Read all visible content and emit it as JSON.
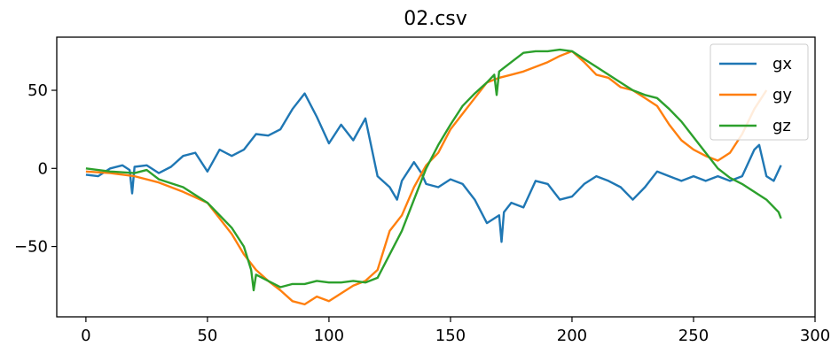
{
  "chart_data": {
    "type": "line",
    "title": "02.csv",
    "xlabel": "",
    "ylabel": "",
    "xlim": [
      -12,
      300
    ],
    "ylim": [
      -95,
      84
    ],
    "xticks": [
      0,
      50,
      100,
      150,
      200,
      250,
      300
    ],
    "yticks": [
      -50,
      0,
      50
    ],
    "grid": false,
    "legend": "top-right",
    "colors": {
      "gx": "#1f77b4",
      "gy": "#ff7f0e",
      "gz": "#2ca02c"
    },
    "series": [
      {
        "name": "gx",
        "x": [
          0,
          5,
          10,
          15,
          18,
          19,
          20,
          25,
          30,
          35,
          40,
          45,
          50,
          55,
          60,
          65,
          70,
          75,
          80,
          85,
          90,
          95,
          100,
          105,
          110,
          115,
          120,
          125,
          128,
          130,
          135,
          138,
          140,
          145,
          150,
          155,
          160,
          165,
          170,
          171,
          172,
          175,
          180,
          185,
          190,
          195,
          200,
          205,
          210,
          215,
          220,
          225,
          230,
          235,
          240,
          245,
          250,
          255,
          260,
          265,
          270,
          275,
          277,
          280,
          283,
          286
        ],
        "y": [
          -4,
          -5,
          0,
          2,
          -1,
          -16,
          1,
          2,
          -3,
          1,
          8,
          10,
          -2,
          12,
          8,
          12,
          22,
          21,
          25,
          38,
          48,
          33,
          16,
          28,
          18,
          32,
          -5,
          -12,
          -20,
          -8,
          4,
          -3,
          -10,
          -12,
          -7,
          -10,
          -20,
          -35,
          -30,
          -47,
          -28,
          -22,
          -25,
          -8,
          -10,
          -20,
          -18,
          -10,
          -5,
          -8,
          -12,
          -20,
          -12,
          -2,
          -5,
          -8,
          -5,
          -8,
          -5,
          -8,
          -5,
          12,
          15,
          -5,
          -8,
          2
        ]
      },
      {
        "name": "gy",
        "x": [
          0,
          10,
          20,
          30,
          40,
          50,
          55,
          60,
          65,
          70,
          75,
          80,
          85,
          90,
          95,
          100,
          105,
          110,
          115,
          120,
          125,
          130,
          135,
          140,
          145,
          150,
          155,
          160,
          165,
          170,
          175,
          180,
          185,
          190,
          195,
          200,
          205,
          210,
          215,
          220,
          225,
          230,
          235,
          240,
          245,
          250,
          255,
          260,
          265,
          270,
          275,
          280
        ],
        "y": [
          -2,
          -3,
          -5,
          -9,
          -15,
          -22,
          -32,
          -42,
          -55,
          -65,
          -72,
          -78,
          -85,
          -87,
          -82,
          -85,
          -80,
          -75,
          -72,
          -65,
          -40,
          -30,
          -12,
          2,
          10,
          25,
          35,
          45,
          55,
          58,
          60,
          62,
          65,
          68,
          72,
          75,
          68,
          60,
          58,
          52,
          50,
          45,
          40,
          28,
          18,
          12,
          8,
          5,
          10,
          22,
          38,
          50
        ]
      },
      {
        "name": "gz",
        "x": [
          0,
          10,
          20,
          25,
          30,
          40,
          50,
          60,
          65,
          68,
          69,
          70,
          75,
          80,
          85,
          90,
          95,
          100,
          105,
          110,
          115,
          120,
          125,
          130,
          135,
          140,
          145,
          150,
          155,
          160,
          165,
          168,
          169,
          170,
          175,
          180,
          185,
          190,
          195,
          200,
          205,
          210,
          215,
          220,
          225,
          230,
          235,
          240,
          245,
          250,
          255,
          260,
          265,
          270,
          275,
          280,
          285,
          286
        ],
        "y": [
          0,
          -2,
          -3,
          -1,
          -7,
          -12,
          -22,
          -38,
          -50,
          -65,
          -78,
          -68,
          -72,
          -76,
          -74,
          -74,
          -72,
          -73,
          -73,
          -72,
          -73,
          -70,
          -55,
          -40,
          -20,
          0,
          15,
          28,
          40,
          48,
          55,
          60,
          47,
          62,
          68,
          74,
          75,
          75,
          76,
          75,
          70,
          65,
          60,
          55,
          50,
          47,
          45,
          38,
          30,
          20,
          10,
          0,
          -6,
          -10,
          -15,
          -20,
          -28,
          -32
        ]
      }
    ]
  }
}
